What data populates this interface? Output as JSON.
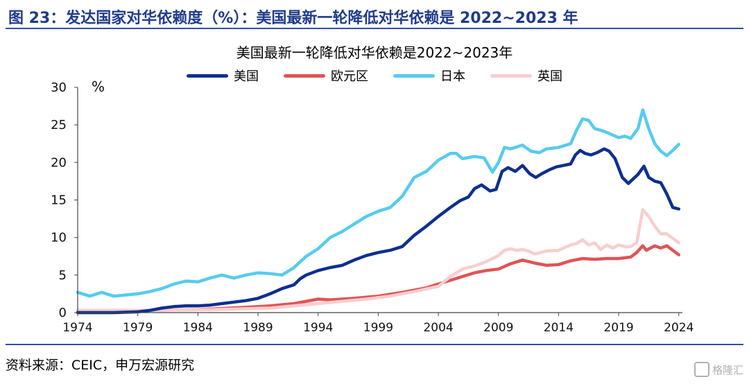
{
  "figure_title": "图 23：发达国家对华依赖度（%）：美国最新一轮降低对华依赖是 2022~2023 年",
  "source": "资料来源：CEIC，申万宏源研究",
  "watermark": "格隆汇",
  "colors": {
    "accent": "#1f3b8c",
    "rule": "#2f4fa3"
  },
  "chart_data": {
    "type": "line",
    "title": "美国最新一轮降低对华依赖是2022~2023年",
    "ylabel": "%",
    "xlabel": "",
    "xlim": [
      1974,
      2024.3
    ],
    "ylim": [
      0,
      30
    ],
    "xticks": [
      1974,
      1979,
      1984,
      1989,
      1994,
      1999,
      2004,
      2009,
      2014,
      2019,
      2024
    ],
    "yticks": [
      0,
      5,
      10,
      15,
      20,
      25,
      30
    ],
    "grid": false,
    "legend_position": "top",
    "series": [
      {
        "name": "美国",
        "color": "#0d2f8f",
        "x": [
          1974,
          1977,
          1979,
          1980,
          1981,
          1982,
          1983,
          1984,
          1985,
          1986,
          1987,
          1988,
          1989,
          1990,
          1991,
          1992,
          1992.5,
          1993,
          1994,
          1995,
          1996,
          1997,
          1998,
          1999,
          2000,
          2001,
          2002,
          2003,
          2004,
          2005,
          2005.8,
          2006.5,
          2007,
          2007.6,
          2008.3,
          2008.8,
          2009.3,
          2009.8,
          2010.4,
          2011,
          2011.6,
          2012.1,
          2012.6,
          2013.2,
          2013.8,
          2014.4,
          2015,
          2015.4,
          2015.8,
          2016.2,
          2016.7,
          2017.2,
          2017.8,
          2018.2,
          2018.7,
          2019.3,
          2019.8,
          2020.2,
          2020.6,
          2021.1,
          2021.5,
          2022,
          2022.5,
          2023,
          2023.5,
          2024
        ],
        "y": [
          0,
          0,
          0.1,
          0.3,
          0.6,
          0.8,
          0.9,
          0.9,
          1.0,
          1.2,
          1.4,
          1.6,
          1.9,
          2.5,
          3.2,
          3.7,
          4.5,
          5.0,
          5.6,
          6.0,
          6.3,
          7.0,
          7.6,
          8.0,
          8.3,
          8.8,
          10.3,
          11.5,
          12.8,
          14.0,
          14.9,
          15.4,
          16.5,
          17.0,
          16.2,
          16.4,
          18.8,
          19.3,
          18.8,
          19.6,
          18.5,
          18.0,
          18.5,
          19.0,
          19.4,
          19.6,
          19.8,
          21.0,
          21.6,
          21.2,
          21.0,
          21.3,
          21.8,
          21.5,
          20.5,
          18.0,
          17.2,
          17.8,
          18.4,
          19.5,
          18.0,
          17.5,
          17.3,
          15.8,
          14.0,
          13.8
        ]
      },
      {
        "name": "欧元区",
        "color": "#e05454",
        "x": [
          1974,
          1980,
          1984,
          1988,
          1990,
          1992,
          1994,
          1995,
          1997,
          1999,
          2001,
          2003,
          2004,
          2005,
          2006,
          2007,
          2008,
          2009,
          2010,
          2011,
          2012,
          2013,
          2014,
          2015,
          2016,
          2017,
          2018,
          2019,
          2020,
          2020.5,
          2021,
          2021.3,
          2022,
          2022.5,
          2023,
          2023.5,
          2024
        ],
        "y": [
          0.2,
          0.3,
          0.4,
          0.7,
          0.9,
          1.2,
          1.8,
          1.7,
          1.9,
          2.2,
          2.7,
          3.3,
          3.8,
          4.3,
          4.8,
          5.3,
          5.6,
          5.8,
          6.5,
          7.0,
          6.6,
          6.3,
          6.4,
          6.9,
          7.2,
          7.1,
          7.2,
          7.2,
          7.4,
          8.0,
          8.9,
          8.3,
          8.9,
          8.6,
          8.9,
          8.3,
          7.7
        ]
      },
      {
        "name": "日本",
        "color": "#55ccee",
        "x": [
          1974,
          1975,
          1976,
          1977,
          1979,
          1980,
          1981,
          1982,
          1983,
          1984,
          1985,
          1986,
          1987,
          1988,
          1989,
          1990,
          1991,
          1992,
          1993,
          1994,
          1995,
          1996,
          1997,
          1998,
          1999,
          2000,
          2001,
          2002,
          2003,
          2004,
          2005,
          2005.5,
          2006,
          2007,
          2007.8,
          2008.5,
          2009,
          2009.5,
          2010,
          2011,
          2011.7,
          2012.4,
          2013,
          2014,
          2015,
          2015.5,
          2016,
          2016.5,
          2017,
          2017.5,
          2018,
          2019,
          2019.5,
          2020,
          2020.6,
          2021,
          2021.5,
          2022,
          2022.5,
          2023,
          2023.5,
          2024
        ],
        "y": [
          2.7,
          2.2,
          2.7,
          2.2,
          2.5,
          2.8,
          3.2,
          3.8,
          4.2,
          4.1,
          4.6,
          5.0,
          4.6,
          5.0,
          5.3,
          5.2,
          5.0,
          6.0,
          7.5,
          8.5,
          10.0,
          10.8,
          11.8,
          12.8,
          13.5,
          14.0,
          15.5,
          18.0,
          18.8,
          20.3,
          21.2,
          21.2,
          20.5,
          20.8,
          20.6,
          18.7,
          20.0,
          22.0,
          21.8,
          22.3,
          21.5,
          21.3,
          21.8,
          22.0,
          22.5,
          24.3,
          25.8,
          25.6,
          24.5,
          24.3,
          24.0,
          23.3,
          23.5,
          23.2,
          24.5,
          27.0,
          24.5,
          22.5,
          21.5,
          20.9,
          21.6,
          22.4
        ]
      },
      {
        "name": "英国",
        "color": "#f7cece",
        "x": [
          1974,
          1980,
          1985,
          1990,
          1994,
          1998,
          2000,
          2002,
          2004,
          2005,
          2006,
          2007,
          2008,
          2009,
          2009.5,
          2010,
          2010.5,
          2011,
          2011.5,
          2012,
          2013,
          2014,
          2015,
          2015.5,
          2016,
          2016.5,
          2017,
          2017.5,
          2018,
          2018.5,
          2019,
          2019.5,
          2020,
          2020.5,
          2021,
          2021.5,
          2022,
          2022.5,
          2023,
          2023.5,
          2024
        ],
        "y": [
          0.3,
          0.3,
          0.4,
          0.6,
          1.2,
          1.8,
          2.2,
          2.8,
          3.5,
          4.8,
          5.8,
          6.2,
          6.8,
          7.6,
          8.3,
          8.5,
          8.3,
          8.4,
          8.2,
          7.8,
          8.2,
          8.3,
          9.0,
          9.2,
          9.7,
          9.0,
          9.3,
          8.4,
          9.0,
          8.6,
          9.0,
          8.8,
          8.8,
          9.3,
          13.7,
          12.8,
          11.5,
          10.5,
          10.5,
          9.9,
          9.3
        ]
      }
    ]
  }
}
